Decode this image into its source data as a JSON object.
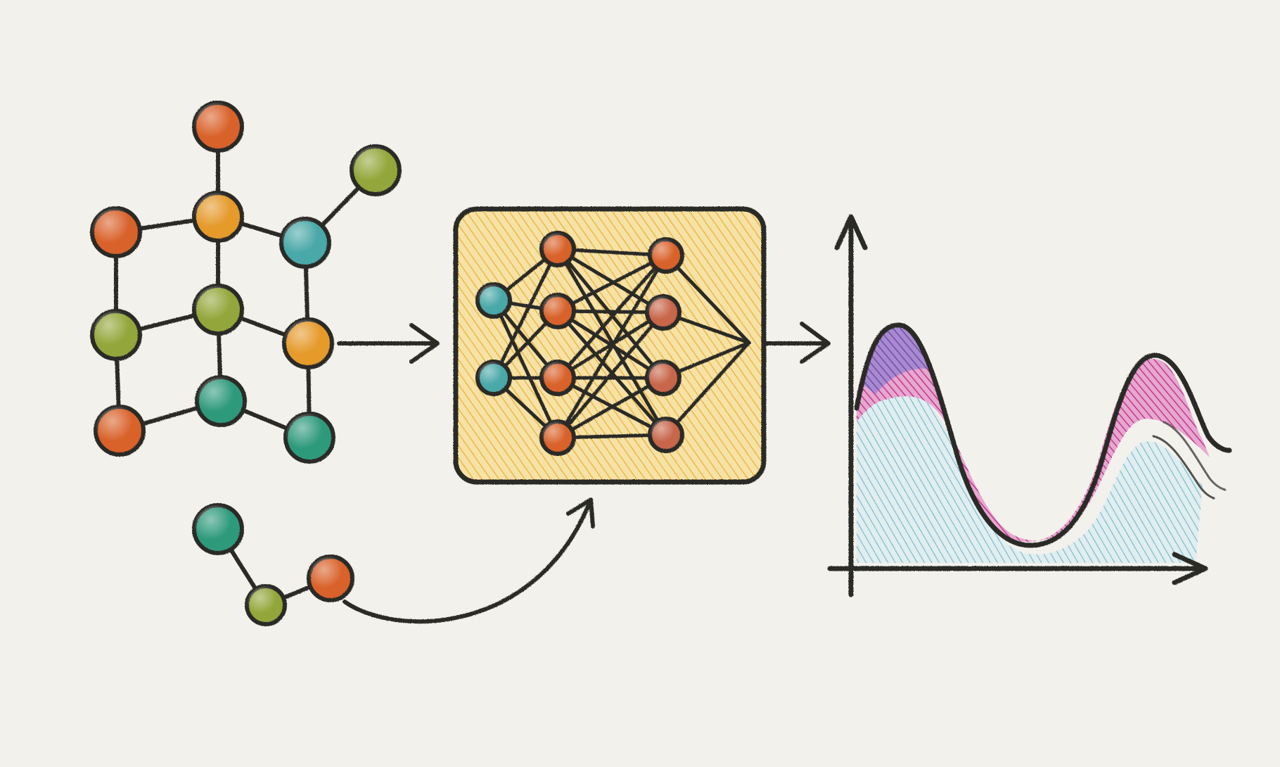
{
  "canvas": {
    "background": "#f3f1ec",
    "ink": "#2a2a28"
  },
  "palette": {
    "orange": "#d9622b",
    "amber": "#e59a2c",
    "olive": "#93a63a",
    "teal": "#4aa8a8",
    "green": "#2f9a7c",
    "rust": "#c8664a",
    "panel_fill": "#f4d27e",
    "curve_top": "#c0398f",
    "curve_peak": "#6e4fa8",
    "curve_base": "#72b3c9"
  },
  "sections": [
    {
      "name": "molecule-graph",
      "description_visible_text": ""
    },
    {
      "name": "neural-network-panel",
      "description_visible_text": ""
    },
    {
      "name": "output-curve-plot",
      "description_visible_text": ""
    }
  ],
  "icons": [
    "molecule-graph-icon",
    "small-molecule-icon",
    "neural-network-icon",
    "arrow-right-icon",
    "curved-arrow-icon",
    "plot-axes-icon"
  ]
}
